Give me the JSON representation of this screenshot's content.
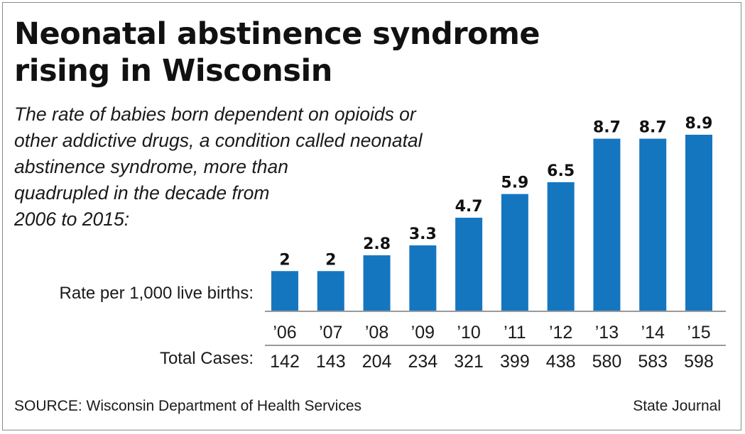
{
  "title": "Neonatal abstinence syndrome\nrising in Wisconsin",
  "subtitle": "The rate of babies born dependent on opioids or\nother addictive drugs, a condition called neonatal\nabstinence syndrome, more than\nquadrupled in the decade from\n2006 to 2015:",
  "rate_label": "Rate per 1,000 live births:",
  "cases_label": "Total Cases:",
  "source": "SOURCE: Wisconsin Department of Health Services",
  "credit": "State Journal",
  "colors": {
    "bar": "#1576c0",
    "axis": "#9a9a9a",
    "text": "#1a1a1a"
  },
  "chart_data": {
    "type": "bar",
    "categories": [
      "’06",
      "’07",
      "’08",
      "’09",
      "’10",
      "’11",
      "’12",
      "’13",
      "’14",
      "’15"
    ],
    "values": [
      2,
      2,
      2.8,
      3.3,
      4.7,
      5.9,
      6.5,
      8.7,
      8.7,
      8.9
    ],
    "value_labels": [
      "2",
      "2",
      "2.8",
      "3.3",
      "4.7",
      "5.9",
      "6.5",
      "8.7",
      "8.7",
      "8.9"
    ],
    "total_cases": [
      "142",
      "143",
      "204",
      "234",
      "321",
      "399",
      "438",
      "580",
      "583",
      "598"
    ],
    "ylim": [
      0,
      8.9
    ],
    "grid": false,
    "legend": "none"
  }
}
